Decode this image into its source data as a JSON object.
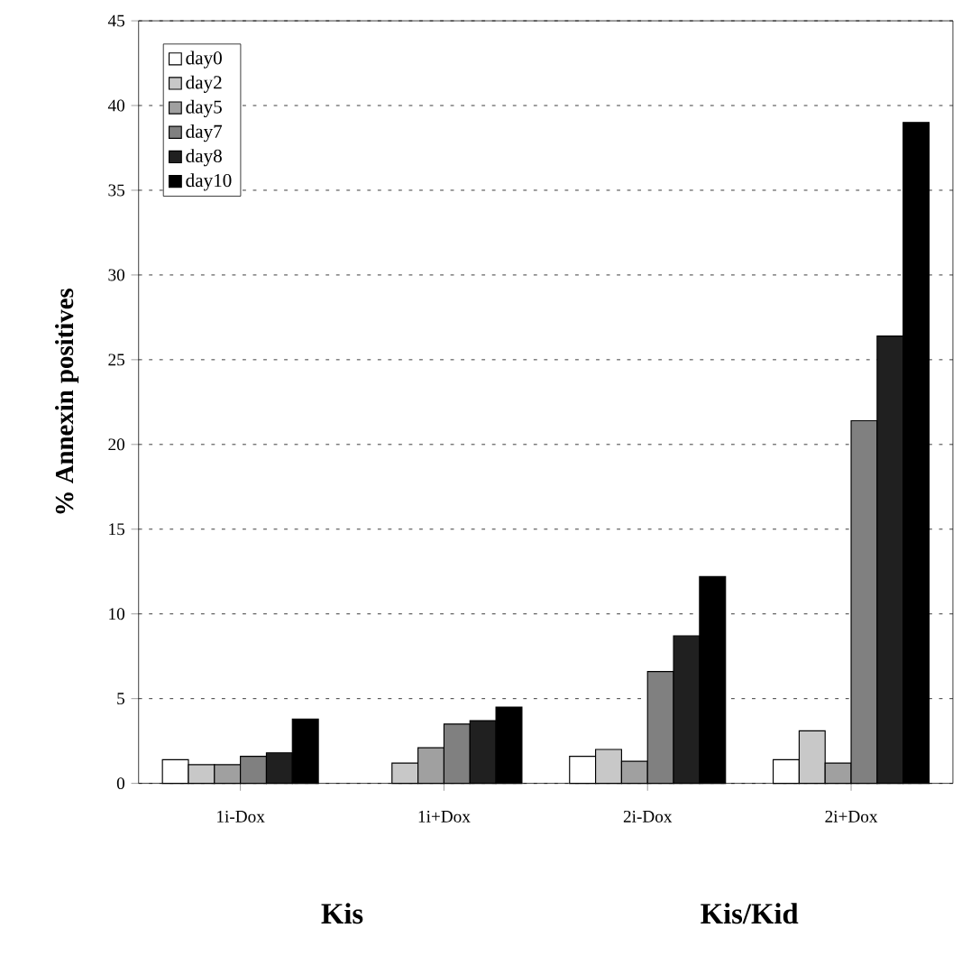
{
  "chart_data": {
    "type": "bar",
    "ylabel": "% Annexin positives",
    "categories": [
      "1i-Dox",
      "1i+Dox",
      "2i-Dox",
      "2i+Dox"
    ],
    "series": [
      {
        "name": "day0",
        "color": "#ffffff",
        "values": [
          1.4,
          null,
          1.6,
          1.4
        ]
      },
      {
        "name": "day2",
        "color": "#c8c8c8",
        "values": [
          1.1,
          1.2,
          2.0,
          3.1
        ]
      },
      {
        "name": "day5",
        "color": "#a0a0a0",
        "values": [
          1.1,
          2.1,
          1.3,
          1.2
        ]
      },
      {
        "name": "day7",
        "color": "#808080",
        "values": [
          1.6,
          3.5,
          6.6,
          21.4
        ]
      },
      {
        "name": "day8",
        "color": "#202020",
        "values": [
          1.8,
          3.7,
          8.7,
          26.4
        ]
      },
      {
        "name": "day10",
        "color": "#000000",
        "values": [
          3.8,
          4.5,
          12.2,
          39.0
        ]
      }
    ],
    "ylim": [
      0,
      45
    ],
    "yticks": [
      0,
      5,
      10,
      15,
      20,
      25,
      30,
      35,
      40,
      45
    ],
    "grid": "y",
    "legend": "top left",
    "annotations": [
      "Kis",
      "Kis/Kid"
    ]
  }
}
